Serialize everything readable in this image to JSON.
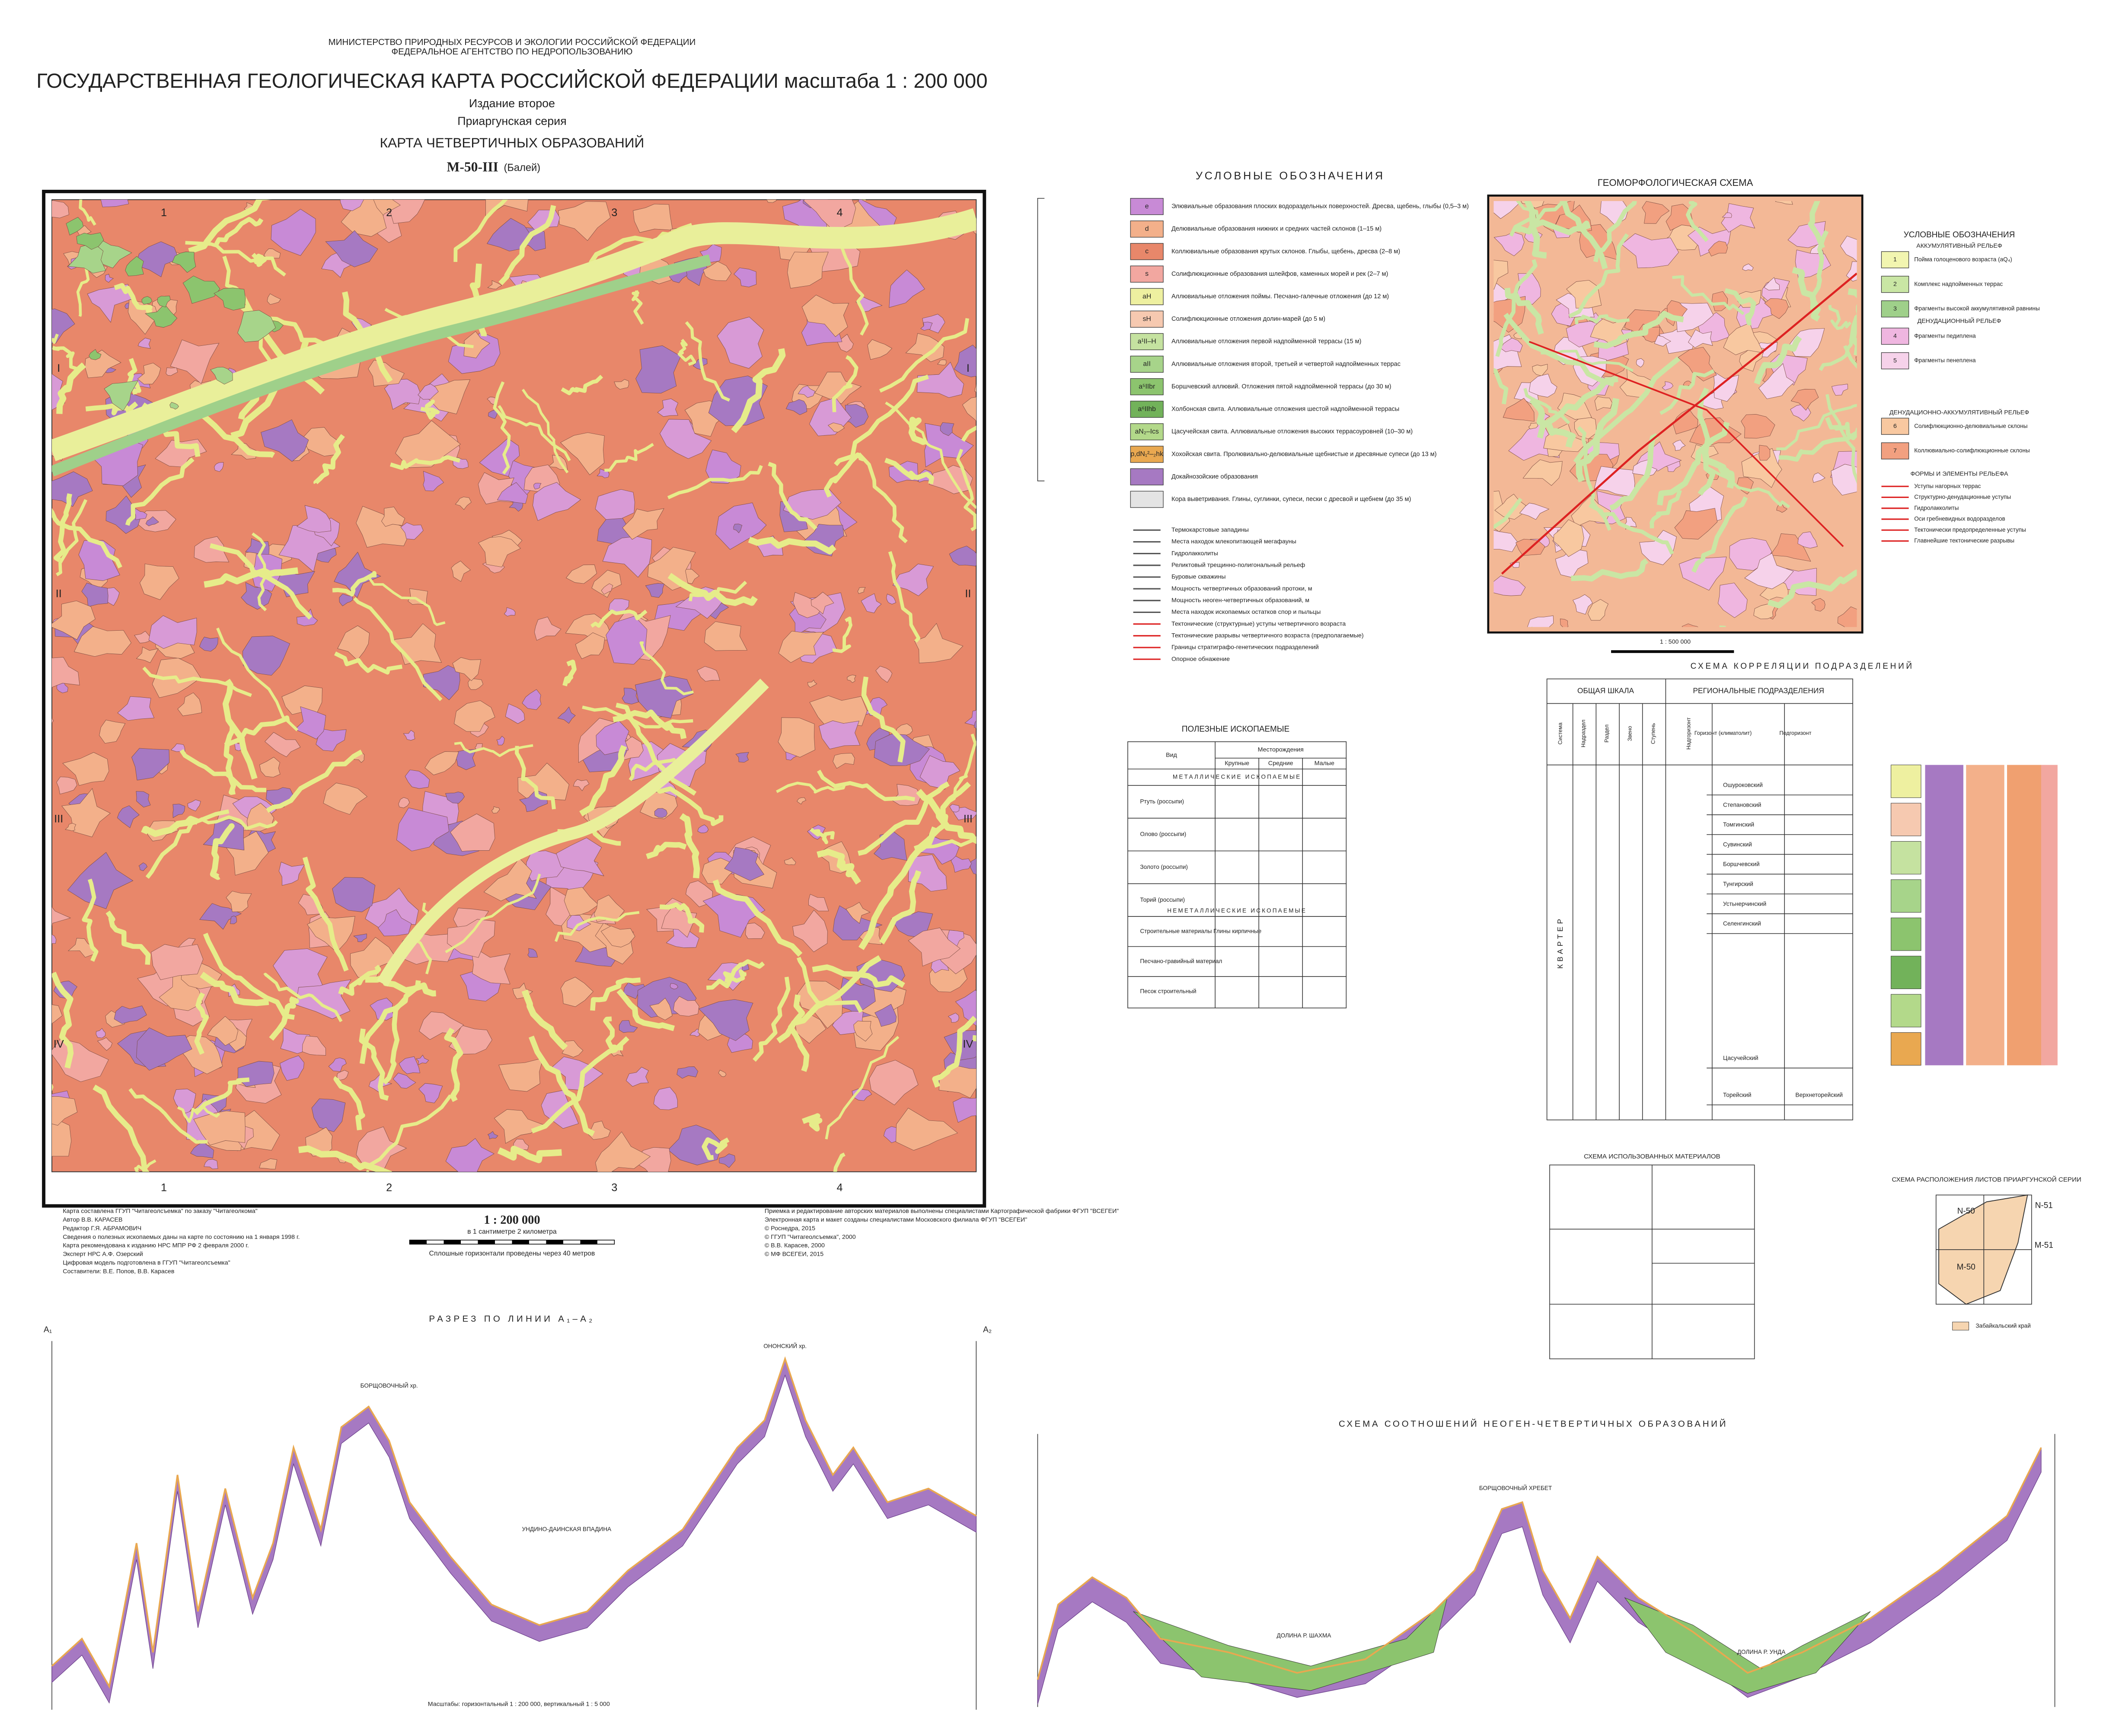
{
  "header": {
    "ministry": "МИНИСТЕРСТВО ПРИРОДНЫХ РЕСУРСОВ И ЭКОЛОГИИ РОССИЙСКОЙ ФЕДЕРАЦИИ",
    "agency": "ФЕДЕРАЛЬНОЕ АГЕНТСТВО ПО НЕДРОПОЛЬЗОВАНИЮ",
    "title": "ГОСУДАРСТВЕННАЯ ГЕОЛОГИЧЕСКАЯ КАРТА РОССИЙСКОЙ ФЕДЕРАЦИИ масштаба 1 : 200 000",
    "edition": "Издание второе",
    "series": "Приаргунская серия",
    "map_title": "КАРТА ЧЕТВЕРТИЧНЫХ ОБРАЗОВАНИЙ",
    "sheet": "M-50-III",
    "sheet_name": "(Балей)"
  },
  "map": {
    "columns": [
      "1",
      "2",
      "3",
      "4"
    ],
    "rows": [
      "I",
      "II",
      "III",
      "IV"
    ],
    "scale": "1 : 200 000",
    "scale_note": "в 1 сантиметре 2 километра",
    "contour_note": "Сплошные горизонтали проведены через 40 метров",
    "credits_left": [
      "Карта составлена ГГУП \"Читагеолсъемка\" по заказу \"Читагеолкома\"",
      "Автор В.В. КАРАСЕВ",
      "Редактор Г.Я. АБРАМОВИЧ",
      "Сведения о полезных ископаемых даны на карте по состоянию на 1 января 1998 г.",
      "Карта рекомендована к изданию НРС МПР РФ 2 февраля 2000 г.",
      "Эксперт НРС А.Ф. Озерский",
      "Цифровая модель подготовлена в ГГУП \"Читагеолсъемка\"",
      "Составители: В.Е. Попов, В.В. Карасев"
    ],
    "credits_right": [
      "Приемка и редактирование авторских материалов выполнены специалистами Картографической фабрики ФГУП \"ВСЕГЕИ\"",
      "Электронная карта и макет созданы специалистами Московского филиала ФГУП \"ВСЕГЕИ\"",
      "© Роснедра, 2015",
      "© ГГУП \"Читагеолсъемка\", 2000",
      "© В.В. Карасев, 2000",
      "© МФ ВСЕГЕИ, 2015"
    ]
  },
  "legend": {
    "title": "УСЛОВНЫЕ ОБОЗНАЧЕНИЯ",
    "items": [
      {
        "index": "e",
        "color": "#c88ad6",
        "text": "Элювиальные образования плоских водораздельных поверхностей. Дресва, щебень, глыбы (0,5–3 м)"
      },
      {
        "index": "d",
        "color": "#f3b08a",
        "text": "Делювиальные образования нижних и средних частей склонов (1–15 м)"
      },
      {
        "index": "c",
        "color": "#e8876a",
        "text": "Коллювиальные образования крутых склонов. Глыбы, щебень, дресва (2–8 м)"
      },
      {
        "index": "s",
        "color": "#f2a7a0",
        "text": "Солифлюкционные образования шлейфов, каменных морей и рек (2–7 м)"
      },
      {
        "index": "aH",
        "color": "#eef0a0",
        "text": "Аллювиальные отложения поймы. Песчано-галечные отложения (до 12 м)"
      },
      {
        "index": "sH",
        "color": "#f6c9b0",
        "text": "Солифлюкционные отложения долин-марей (до 5 м)"
      },
      {
        "index": "a¹II–H",
        "color": "#c5e2a0",
        "text": "Аллювиальные отложения первой надпойменной террасы (15 м)"
      },
      {
        "index": "aII",
        "color": "#a7d48a",
        "text": "Аллювиальные отложения второй, третьей и четвертой надпойменных террас"
      },
      {
        "index": "a⁵IIbr",
        "color": "#8cc46e",
        "text": "Боршчевский аллювий. Отложения пятой надпойменной террасы (до 30 м)"
      },
      {
        "index": "a⁶IIhb",
        "color": "#72b25a",
        "text": "Холбонская свита. Аллювиальные отложения шестой надпойменной террасы"
      },
      {
        "index": "aN₂–Ics",
        "color": "#b3d98a",
        "text": "Цасучейская свита. Аллювиальные отложения высоких террасоуровней (10–30 м)"
      },
      {
        "index": "p,dN₁²–₂hk",
        "color": "#e9a850",
        "text": "Хохойская свита. Пролювиально-делювиальные щебнистые и дресвяные супеси (до 13 м)"
      },
      {
        "index": "",
        "color": "#a679c2",
        "text": "Докайнозойские образования"
      },
      {
        "index": "",
        "color": "#e4e4e4",
        "text": "Кора выветривания. Глины, суглинки, супеси, пески с дресвой и щебнем (до 35 м)"
      }
    ],
    "symbols": [
      "Термокарстовые западины",
      "Места находок млекопитающей мегафауны",
      "Гидролакколиты",
      "Реликтовый трещинно-полигональный рельеф",
      "Буровые скважины",
      "Мощность четвертичных образований протоки, м",
      "Мощность неоген-четвертичных образований, м",
      "Места находок ископаемых остатков спор и пыльцы",
      "Тектонические (структурные) уступы четвертичного возраста",
      "Тектонические разрывы четвертичного возраста (предполагаемые)",
      "Границы стратиграфо-генетических подразделений",
      "Опорное обнажение"
    ]
  },
  "geomorph": {
    "title": "ГЕОМОРФОЛОГИЧЕСКАЯ СХЕМА",
    "scale": "1 : 500 000",
    "legend_title": "УСЛОВНЫЕ ОБОЗНАЧЕНИЯ",
    "group1": "АККУМУЛЯТИВНЫЙ РЕЛЬЕФ",
    "group2": "ДЕНУДАЦИОННЫЙ РЕЛЬЕФ",
    "group3": "ДЕНУДАЦИОННО-АККУМУЛЯТИВНЫЙ РЕЛЬЕФ",
    "group4": "ФОРМЫ И ЭЛЕМЕНТЫ РЕЛЬЕФА",
    "items": [
      {
        "num": "1",
        "color": "#f2f5b0",
        "text": "Пойма голоценового возраста (aQ₄)"
      },
      {
        "num": "2",
        "color": "#c9e6a4",
        "text": "Комплекс надпойменных террас"
      },
      {
        "num": "3",
        "color": "#9fd08a",
        "text": "Фрагменты высокой аккумулятивной равнины"
      },
      {
        "num": "4",
        "color": "#efb6e0",
        "text": "Фрагменты педиплена"
      },
      {
        "num": "5",
        "color": "#f6d2ea",
        "text": "Фрагменты пенеплена"
      },
      {
        "num": "6",
        "color": "#f8c8a0",
        "text": "Солифлюкционно-делювиальные склоны"
      },
      {
        "num": "7",
        "color": "#f2a080",
        "text": "Коллювиально-солифлюкционные склоны"
      }
    ],
    "forms": [
      "Уступы нагорных террас",
      "Структурно-денудационные уступы",
      "Гидролакколиты",
      "Оси гребневидных водоразделов",
      "Тектонически предопределенные уступы",
      "Главнейшие тектонические разрывы"
    ]
  },
  "minerals": {
    "title": "ПОЛЕЗНЫЕ ИСКОПАЕМЫЕ",
    "col_kind": "Вид",
    "col_deposits": "Месторождения",
    "sizes": [
      "Крупные",
      "Средние",
      "Малые"
    ],
    "metal": "МЕТАЛЛИЧЕСКИЕ ИСКОПАЕМЫЕ",
    "nonmetal": "НЕМЕТАЛЛИЧЕСКИЕ ИСКОПАЕМЫЕ",
    "metal_rows": [
      "Ртуть (россыпи)",
      "Олово (россыпи)",
      "Золото (россыпи)",
      "Торий (россыпи)"
    ],
    "nonmetal_rows": [
      "Строительные материалы Глины кирпичные",
      "Песчано-гравийный материал",
      "Песок строительный"
    ]
  },
  "correlation": {
    "title": "СХЕМА КОРРЕЛЯЦИИ ПОДРАЗДЕЛЕНИЙ",
    "general": "ОБЩАЯ ШКАЛА",
    "regional": "РЕГИОНАЛЬНЫЕ ПОДРАЗДЕЛЕНИЯ",
    "columns": [
      "Система",
      "Надраздел",
      "Раздел",
      "Звено",
      "Ступень",
      "Надгоризонт",
      "Горизонт (климатолит)",
      "Подгоризонт"
    ],
    "system": "КВАРТЕР",
    "horizons": [
      "Ошуроковский",
      "Степановский",
      "Томгинский",
      "Сувинский",
      "Боршчевский",
      "Тунгирский",
      "Устьнерчинский",
      "Селенгинский",
      "Цасучейский",
      "Торейский"
    ],
    "subhorizon": "Верхнеторейский"
  },
  "materials": {
    "title": "СХЕМА ИСПОЛЬЗОВАННЫХ МАТЕРИАЛОВ"
  },
  "location": {
    "title": "СХЕМА РАСПОЛОЖЕНИЯ ЛИСТОВ ПРИАРГУНСКОЙ СЕРИИ",
    "sheets": [
      "N-50",
      "N-51",
      "M-50",
      "M-51"
    ],
    "region": "Забайкальский край"
  },
  "section1": {
    "title": "РАЗРЕЗ ПО ЛИНИИ А₁–А₂",
    "left": "А₁",
    "right": "А₂",
    "peaks": [
      "ОНОНСКИЙ хр.",
      "БОРЩОВОЧНЫЙ хр.",
      "УНДИНО-ДАИНСКАЯ ВПАДИНА"
    ],
    "scale": "Масштабы: горизонтальный 1 : 200 000, вертикальный 1 : 5 000"
  },
  "section2": {
    "title": "СХЕМА СООТНОШЕНИЙ НЕОГЕН-ЧЕТВЕРТИЧНЫХ ОБРАЗОВАНИЙ",
    "labels": [
      "БОРЩОВОЧНЫЙ ХРЕБЕТ",
      "ДОЛИНА Р. ШАХМА",
      "ДОЛИНА Р. УНДА"
    ]
  }
}
